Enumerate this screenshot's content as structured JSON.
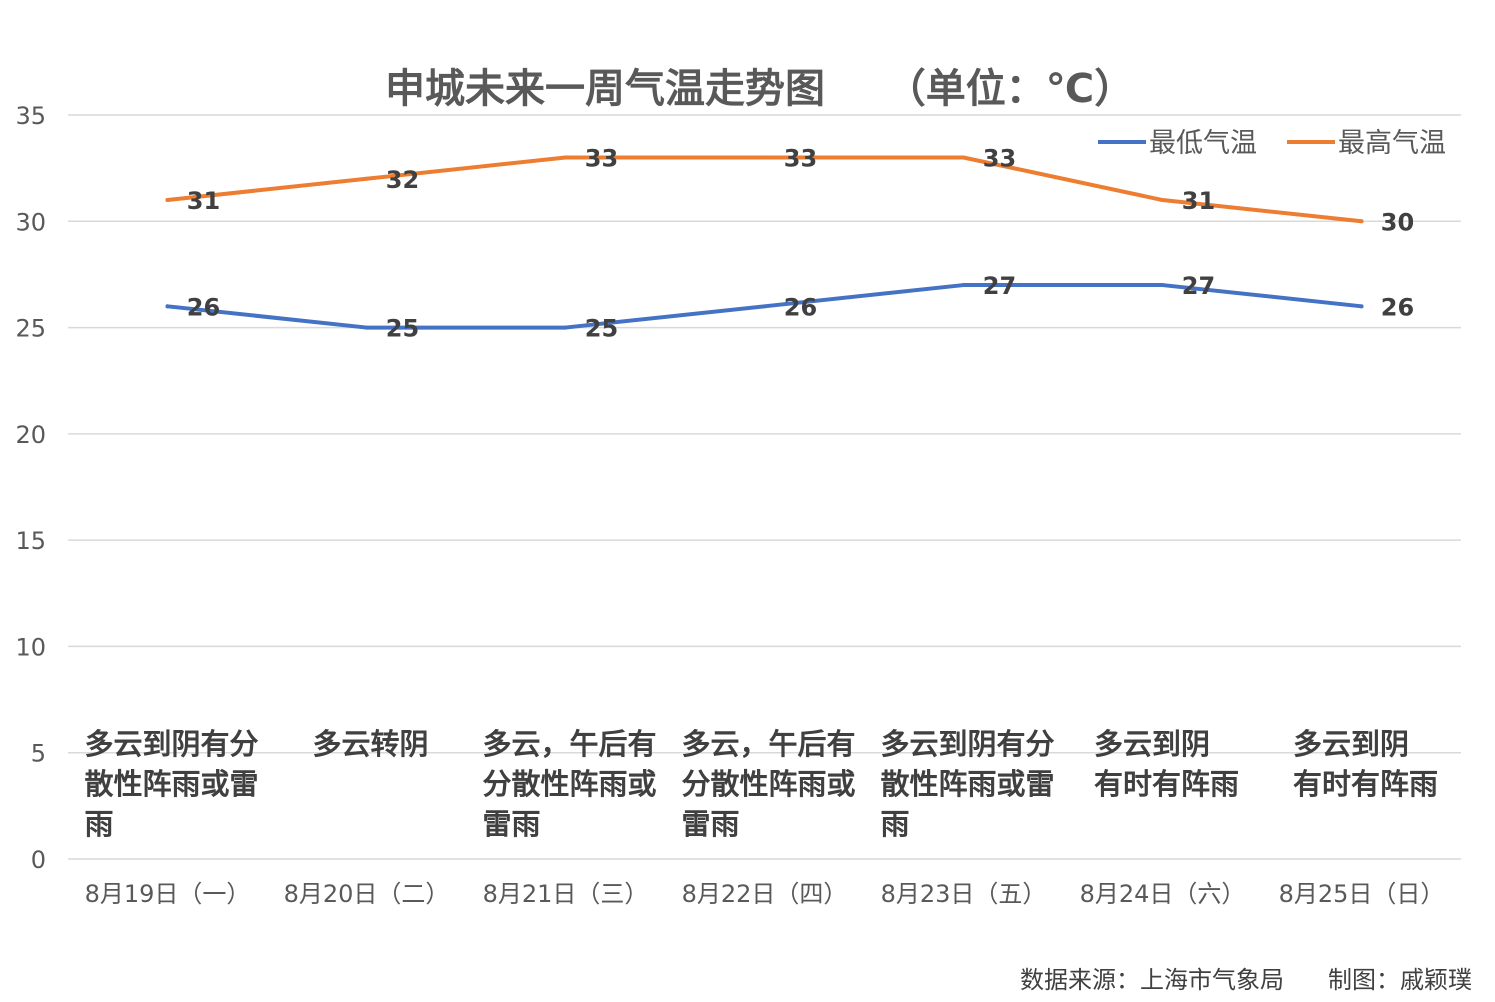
{
  "chart_data": {
    "type": "line",
    "title": "申城未来一周气温走势图",
    "title_unit": "（单位：℃）",
    "categories": [
      "8月19日（一）",
      "8月20日（二）",
      "8月21日（三）",
      "8月22日（四）",
      "8月23日（五）",
      "8月24日（六）",
      "8月25日（日）"
    ],
    "series": [
      {
        "name": "最低气温",
        "color": "#4472c4",
        "values": [
          26,
          25,
          25,
          26,
          27,
          27,
          26
        ]
      },
      {
        "name": "最高气温",
        "color": "#ed7d31",
        "values": [
          31,
          32,
          33,
          33,
          33,
          31,
          30
        ]
      }
    ],
    "ylim": [
      0,
      35
    ],
    "yticks": [
      0,
      5,
      10,
      15,
      20,
      25,
      30,
      35
    ],
    "grid": true,
    "legend_position": "top-right",
    "weather_notes": [
      [
        "多云到阴有分",
        "散性阵雨或雷",
        "雨"
      ],
      [
        "多云转阴"
      ],
      [
        "多云，午后有",
        "分散性阵雨或",
        "雷雨"
      ],
      [
        "多云，午后有",
        "分散性阵雨或",
        "雷雨"
      ],
      [
        "多云到阴有分",
        "散性阵雨或雷",
        "雨"
      ],
      [
        "多云到阴",
        "有时有阵雨"
      ],
      [
        "多云到阴",
        "有时有阵雨"
      ]
    ]
  },
  "footer": {
    "source": "数据来源：上海市气象局",
    "credit": "制图：戚颖璞"
  }
}
